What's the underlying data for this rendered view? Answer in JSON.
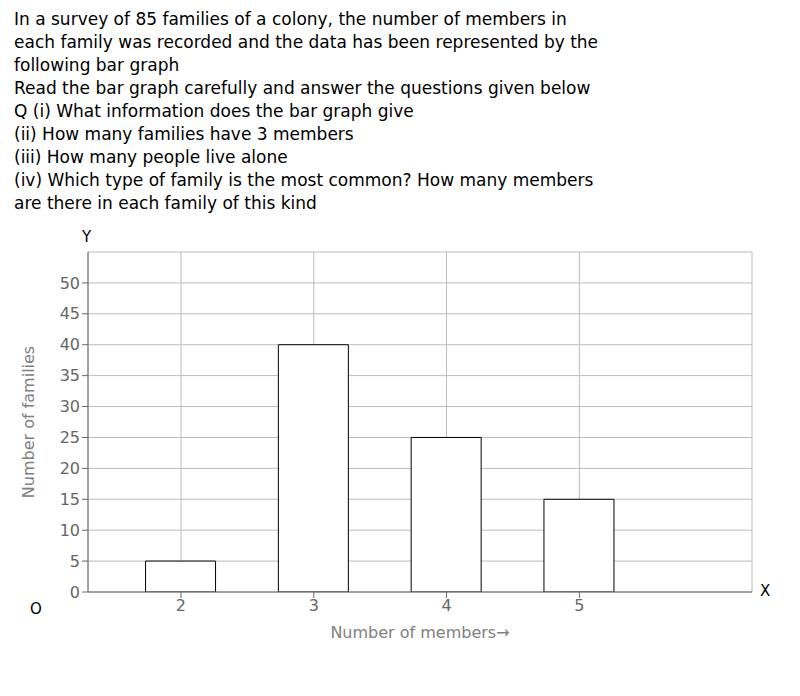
{
  "chart_data": {
    "type": "bar",
    "title": [
      "In a survey of 85 families of a colony, the number of members in",
      "each family was recorded and the data has been represented by the",
      "following bar graph",
      "Read the bar graph carefully and answer the questions given below",
      "Q (i) What information does the bar graph give",
      "(ii) How many families have 3 members",
      "(iii) How many people live alone",
      "(iv) Which type of family is the most common? How many members",
      "are there in each family of this kind"
    ],
    "x": [
      2,
      3,
      4,
      5
    ],
    "values": [
      5,
      40,
      25,
      15
    ],
    "xlabel": "Number of members→",
    "ylabel": "Number of families",
    "xlim": [
      1.3,
      6.3
    ],
    "xticks": [
      2,
      3,
      4,
      5
    ],
    "ylim": [
      0,
      55
    ],
    "yticks": [
      0,
      5,
      10,
      15,
      20,
      25,
      30,
      35,
      40,
      45,
      50
    ],
    "color": "white",
    "grid": true,
    "annotations": [
      "Y",
      "X",
      "O"
    ]
  }
}
